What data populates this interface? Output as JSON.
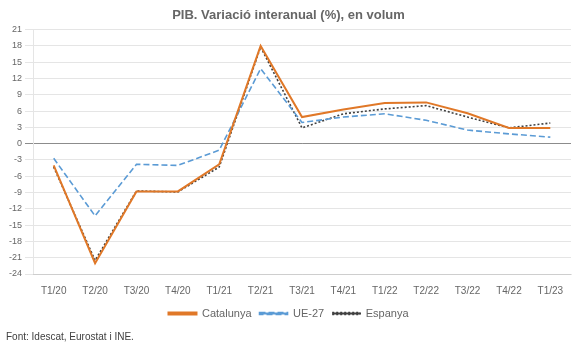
{
  "chart_data": {
    "type": "line",
    "title": "PIB. Variació interanual (%), en volum",
    "annotations": [
      "Font: Idescat, Eurostat i INE."
    ],
    "categories": [
      "T1/20",
      "T2/20",
      "T3/20",
      "T4/20",
      "T1/21",
      "T2/21",
      "T3/21",
      "T4/21",
      "T1/22",
      "T2/22",
      "T3/22",
      "T4/22",
      "T1/23"
    ],
    "series": [
      {
        "name": "Catalunya",
        "color": "#e07828",
        "line_style": "solid",
        "values": [
          -4.0,
          -22.0,
          -8.8,
          -8.8,
          -3.8,
          18.0,
          4.9,
          6.3,
          7.5,
          7.6,
          5.6,
          2.9,
          2.9
        ]
      },
      {
        "name": "UE-27",
        "color": "#5b9bd5",
        "line_style": "dashed",
        "values": [
          -2.7,
          -13.3,
          -3.8,
          -4.0,
          -1.2,
          13.8,
          3.9,
          4.9,
          5.5,
          4.3,
          2.5,
          1.8,
          1.2
        ]
      },
      {
        "name": "Espanya",
        "color": "#404040",
        "line_style": "dotted",
        "values": [
          -4.3,
          -21.5,
          -8.7,
          -8.9,
          -4.3,
          17.8,
          2.9,
          5.5,
          6.4,
          7.0,
          4.9,
          2.9,
          3.8
        ]
      }
    ],
    "ylim": [
      -24,
      21
    ],
    "yticks": [
      -24,
      -21,
      -18,
      -15,
      -12,
      -9,
      -6,
      -3,
      0,
      3,
      6,
      9,
      12,
      15,
      18,
      21
    ],
    "grid": "y",
    "legend": "bottom"
  }
}
